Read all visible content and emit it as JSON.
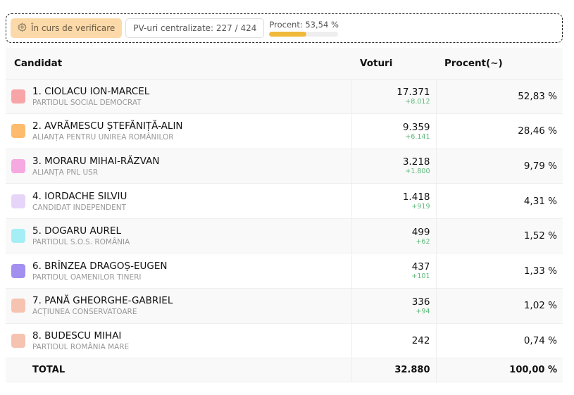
{
  "status": {
    "verification_label": "În curs de verificare",
    "pv_label": "PV-uri centralizate: 227 / 424",
    "percent_label": "Procent: 53,54 %",
    "percent_value": 53.54,
    "accent": "#f0b93a"
  },
  "table": {
    "headers": [
      "Candidat",
      "Voturi",
      "Procent(~)"
    ],
    "rows": [
      {
        "name": "1. CIOLACU ION-MARCEL",
        "party": "PARTIDUL SOCIAL DEMOCRAT",
        "votes": "17.371",
        "delta": "+8.012",
        "percent": "52,83 %",
        "color": "#f8a5a8"
      },
      {
        "name": "2. AVRĂMESCU ȘTEFĂNIȚĂ-ALIN",
        "party": "ALIANȚA PENTRU UNIREA ROMÂNILOR",
        "votes": "9.359",
        "delta": "+6.141",
        "percent": "28,46 %",
        "color": "#fdbb6e"
      },
      {
        "name": "3. MORARU MIHAI-RĂZVAN",
        "party": "ALIANȚA PNL USR",
        "votes": "3.218",
        "delta": "+1.800",
        "percent": "9,79 %",
        "color": "#f6a8e0"
      },
      {
        "name": "4. IORDACHE SILVIU",
        "party": "CANDIDAT INDEPENDENT",
        "votes": "1.418",
        "delta": "+919",
        "percent": "4,31 %",
        "color": "#e6d5f8"
      },
      {
        "name": "5. DOGARU AUREL",
        "party": "PARTIDUL S.O.S. ROMÂNIA",
        "votes": "499",
        "delta": "+62",
        "percent": "1,52 %",
        "color": "#a5eef5"
      },
      {
        "name": "6. BRÎNZEA DRAGOȘ-EUGEN",
        "party": "PARTIDUL OAMENILOR TINERI",
        "votes": "437",
        "delta": "+101",
        "percent": "1,33 %",
        "color": "#a38ff0"
      },
      {
        "name": "7. PANĂ GHEORGHE-GABRIEL",
        "party": "ACȚIUNEA CONSERVATOARE",
        "votes": "336",
        "delta": "+94",
        "percent": "1,02 %",
        "color": "#f6c3b0"
      },
      {
        "name": "8. BUDESCU MIHAI",
        "party": "PARTIDUL ROMÂNIA MARE",
        "votes": "242",
        "delta": "",
        "percent": "0,74 %",
        "color": "#f6c3b0"
      }
    ],
    "total": {
      "label": "TOTAL",
      "votes": "32.880",
      "percent": "100,00 %"
    }
  }
}
